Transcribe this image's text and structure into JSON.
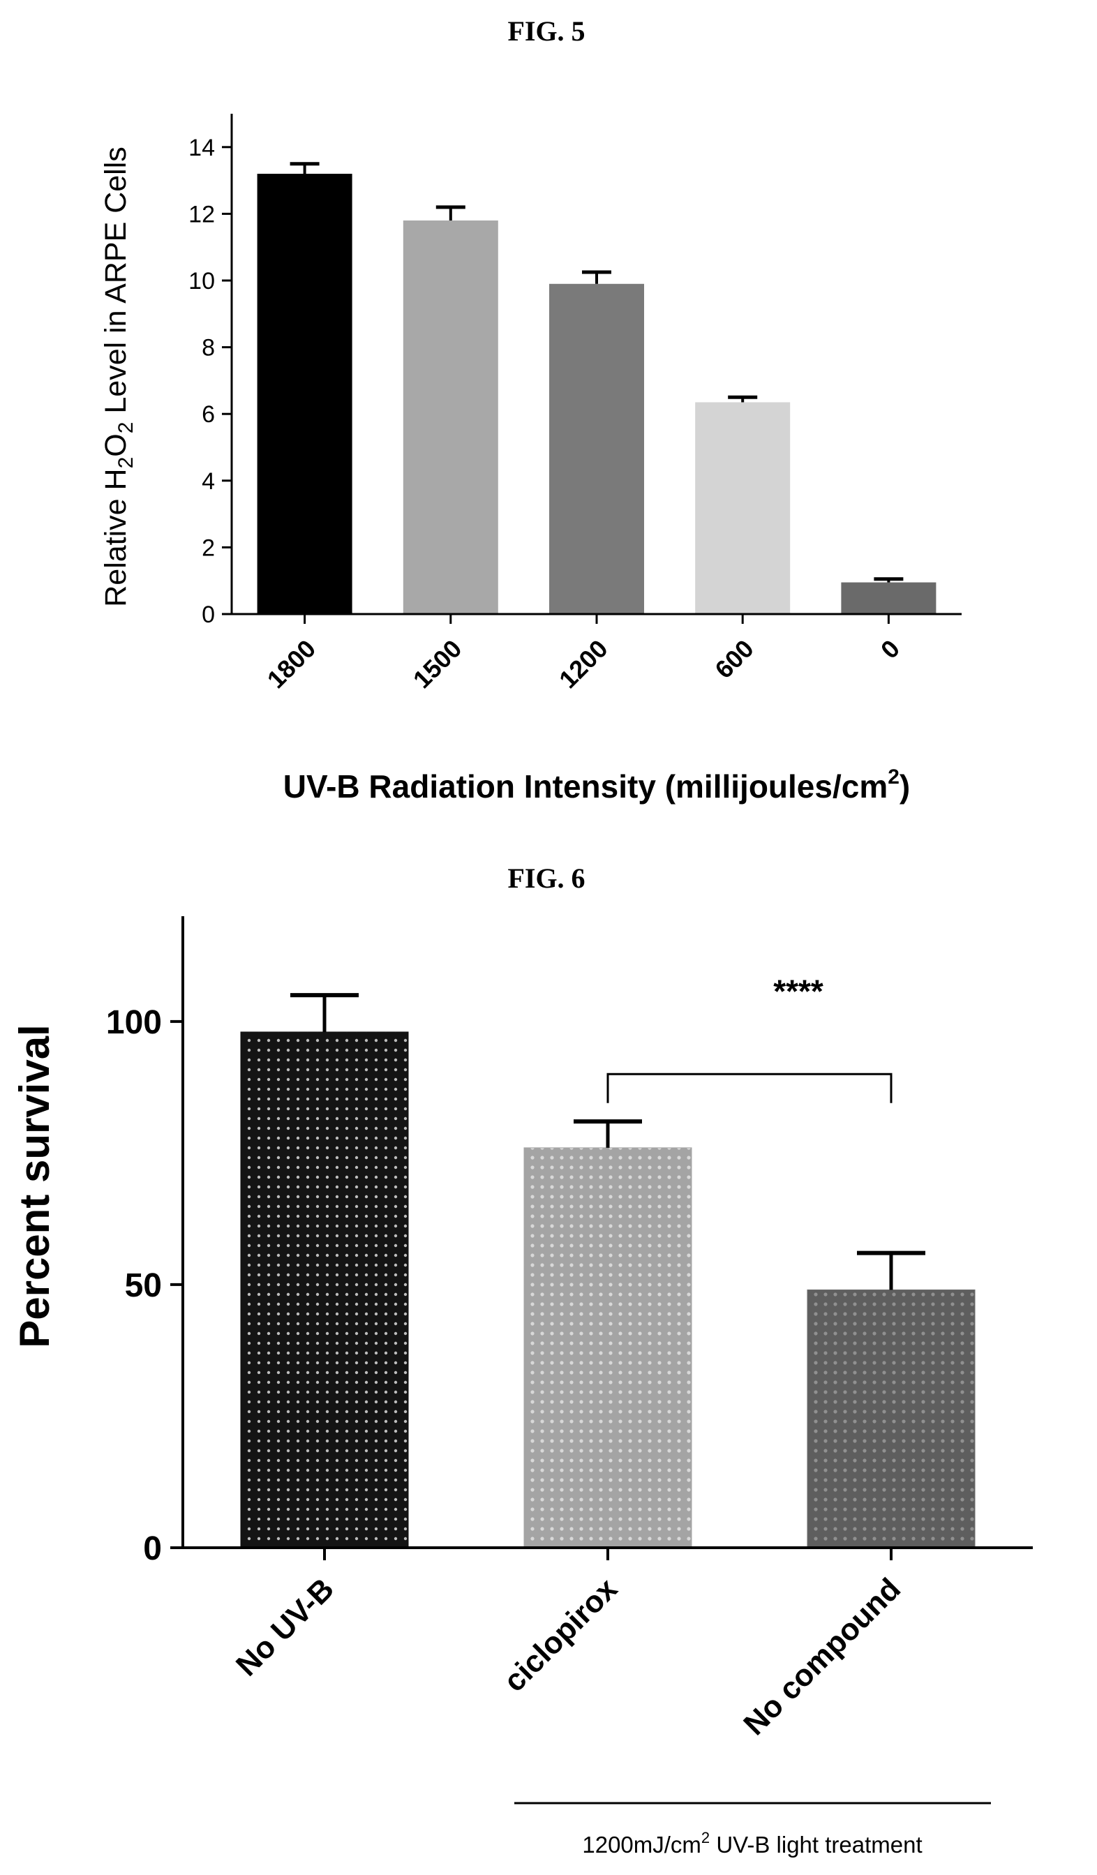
{
  "figures": [
    {
      "label": "FIG. 5"
    },
    {
      "label": "FIG. 6"
    }
  ],
  "chart_data": [
    {
      "figure": "FIG. 5",
      "type": "bar",
      "categories": [
        "1800",
        "1500",
        "1200",
        "600",
        "0"
      ],
      "values": [
        13.2,
        11.8,
        9.9,
        6.35,
        0.95
      ],
      "errors": [
        0.3,
        0.4,
        0.35,
        0.15,
        0.1
      ],
      "colors": [
        "#000000",
        "#a8a8a8",
        "#7a7a7a",
        "#d4d4d4",
        "#6a6a6a"
      ],
      "ylim": [
        0,
        15
      ],
      "yticks": [
        0,
        2,
        4,
        6,
        8,
        10,
        12,
        14
      ],
      "ytick_labels": [
        "0",
        "2",
        "4",
        "6",
        "8",
        "10",
        "12",
        "14"
      ],
      "ylabel_pre": "Relative H",
      "ylabel_sub1": "2",
      "ylabel_mid": "O",
      "ylabel_sub2": "2",
      "ylabel_post": " Level in ARPE Cells",
      "xlabel": "UV-B Radiation Intensity (millijoules/cm",
      "xlabel_sup": "2",
      "xlabel_end": ")"
    },
    {
      "figure": "FIG. 6",
      "type": "bar",
      "categories": [
        "No UV-B",
        "ciclopirox",
        "No compound"
      ],
      "values": [
        98,
        76,
        49
      ],
      "errors": [
        7,
        5,
        7
      ],
      "colors": [
        "#111111",
        "#a4a4a4",
        "#6e6e6e"
      ],
      "ylim": [
        0,
        120
      ],
      "yticks": [
        0,
        50,
        100
      ],
      "ytick_labels": [
        "0",
        "50",
        "100"
      ],
      "ylabel": "Percent survival",
      "significance": {
        "from": "ciclopirox",
        "to": "No compound",
        "label": "****"
      },
      "group_note_pre": "1200mJ/cm",
      "group_note_sup": "2",
      "group_note_post": " UV-B light treatment"
    }
  ]
}
